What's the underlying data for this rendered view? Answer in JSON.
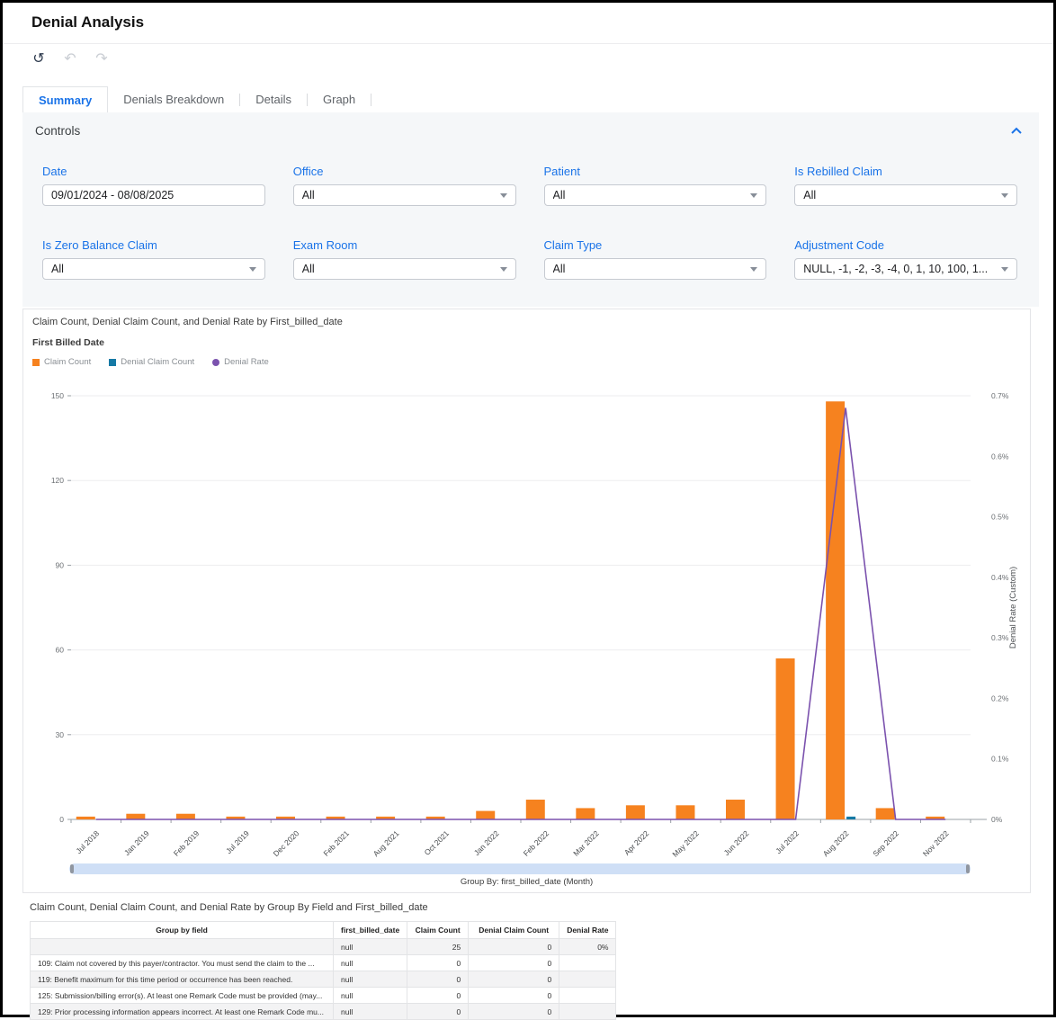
{
  "page_title": "Denial Analysis",
  "toolbar": {
    "icons": [
      {
        "name": "reset",
        "glyph": "↺",
        "disabled": false
      },
      {
        "name": "undo",
        "glyph": "↶",
        "disabled": true
      },
      {
        "name": "redo",
        "glyph": "↷",
        "disabled": true
      }
    ]
  },
  "tabs": [
    {
      "label": "Summary",
      "active": true
    },
    {
      "label": "Denials Breakdown",
      "active": false
    },
    {
      "label": "Details",
      "active": false
    },
    {
      "label": "Graph",
      "active": false
    }
  ],
  "controls": {
    "title": "Controls",
    "accent_color": "#1a73e8",
    "filters": [
      {
        "label": "Date",
        "value": "09/01/2024 - 08/08/2025",
        "type": "date"
      },
      {
        "label": "Office",
        "value": "All",
        "type": "select"
      },
      {
        "label": "Patient",
        "value": "All",
        "type": "select"
      },
      {
        "label": "Is Rebilled Claim",
        "value": "All",
        "type": "select"
      },
      {
        "label": "Is Zero Balance Claim",
        "value": "All",
        "type": "select"
      },
      {
        "label": "Exam Room",
        "value": "All",
        "type": "select"
      },
      {
        "label": "Claim Type",
        "value": "All",
        "type": "select"
      },
      {
        "label": "Adjustment Code",
        "value": "NULL, -1, -2, -3, -4, 0, 1, 10, 100, 1...",
        "type": "select"
      }
    ]
  },
  "chart_data": {
    "type": "bar",
    "title": "Claim Count, Denial Claim Count, and Denial Rate by First_billed_date",
    "subtitle": "First Billed Date",
    "categories": [
      "Jul 2018",
      "Jan 2019",
      "Feb 2019",
      "Jul 2019",
      "Dec 2020",
      "Feb 2021",
      "Aug 2021",
      "Oct 2021",
      "Jan 2022",
      "Feb 2022",
      "Mar 2022",
      "Apr 2022",
      "May 2022",
      "Jun 2022",
      "Jul 2022",
      "Aug 2022",
      "Sep 2022",
      "Nov 2022"
    ],
    "series": [
      {
        "name": "Claim Count",
        "type": "bar",
        "axis": "left",
        "color": "#F6821F",
        "values": [
          1,
          2,
          2,
          1,
          1,
          1,
          1,
          1,
          3,
          7,
          4,
          5,
          5,
          7,
          57,
          148,
          4,
          1
        ]
      },
      {
        "name": "Denial Claim Count",
        "type": "bar",
        "axis": "left",
        "color": "#1579A5",
        "values": [
          0,
          0,
          0,
          0,
          0,
          0,
          0,
          0,
          0,
          0,
          0,
          0,
          0,
          0,
          0,
          1,
          0,
          0
        ]
      },
      {
        "name": "Denial Rate",
        "type": "line",
        "axis": "right",
        "color": "#7B52AE",
        "values": [
          0,
          0,
          0,
          0,
          0,
          0,
          0,
          0,
          0,
          0,
          0,
          0,
          0,
          0,
          0,
          0.68,
          0,
          0
        ]
      }
    ],
    "left_axis": {
      "min": 0,
      "max": 150,
      "ticks": [
        0,
        30,
        60,
        90,
        120,
        150
      ]
    },
    "right_axis": {
      "min": 0,
      "max": 0.7,
      "tick_labels": [
        "0%",
        "0.1%",
        "0.2%",
        "0.3%",
        "0.4%",
        "0.5%",
        "0.6%",
        "0.7%"
      ],
      "label": "Denial Rate (Custom)"
    },
    "legend_position": "top-left",
    "grid": "horizontal"
  },
  "slider": {
    "group_by_label": "Group By: first_billed_date (Month)"
  },
  "table": {
    "title": "Claim Count, Denial Claim Count, and Denial Rate by Group By Field and First_billed_date",
    "columns": [
      "Group by field",
      "first_billed_date",
      "Claim Count",
      "Denial Claim Count",
      "Denial Rate"
    ],
    "rows": [
      [
        "",
        "null",
        "25",
        "0",
        "0%"
      ],
      [
        "109: Claim not covered by this payer/contractor. You must send the claim to the ...",
        "null",
        "0",
        "0",
        ""
      ],
      [
        "119: Benefit maximum for this time period or occurrence has been reached.",
        "null",
        "0",
        "0",
        ""
      ],
      [
        "125: Submission/billing error(s). At least one Remark Code must be provided (may...",
        "null",
        "0",
        "0",
        ""
      ],
      [
        "129: Prior processing information appears incorrect. At least one Remark Code mu...",
        "null",
        "0",
        "0",
        ""
      ]
    ]
  }
}
